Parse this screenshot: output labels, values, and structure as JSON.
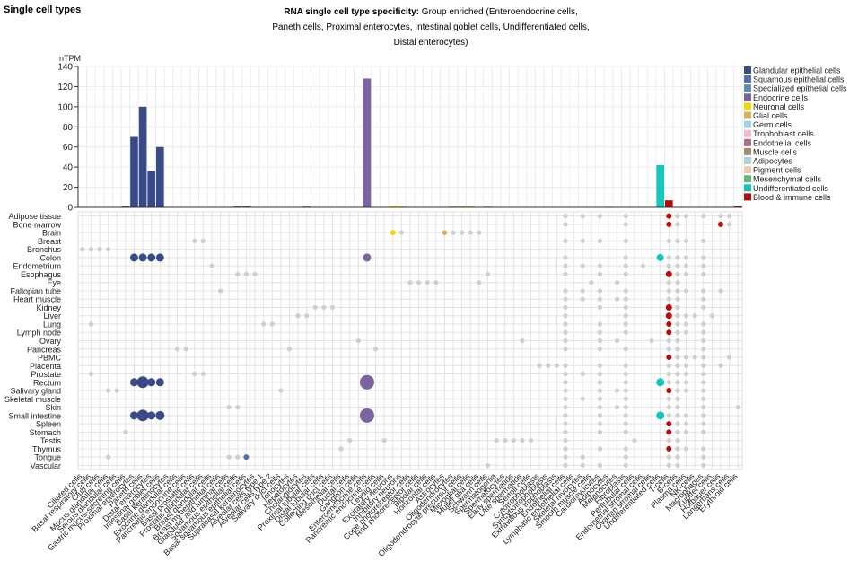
{
  "section_title": "Single cell types",
  "chart_title": {
    "bold": "RNA single cell type specificity:",
    "rest": "Group enriched (Enteroendocrine cells, Paneth cells, Proximal enterocytes, Intestinal goblet cells, Undifferentiated cells, Distal enterocytes)"
  },
  "chart_data": {
    "type": "bar",
    "ylabel": "nTPM",
    "ylim": [
      0,
      140
    ],
    "yticks": [
      0,
      20,
      40,
      60,
      80,
      100,
      120,
      140
    ],
    "grid": true,
    "legend_position": "right",
    "legend": [
      {
        "name": "Glandular epithelial cells",
        "color": "#3a4988"
      },
      {
        "name": "Squamous epithelial cells",
        "color": "#4f6fb3"
      },
      {
        "name": "Specialized epithelial cells",
        "color": "#5b8bb0"
      },
      {
        "name": "Endocrine cells",
        "color": "#7b64a0"
      },
      {
        "name": "Neuronal cells",
        "color": "#f5d800"
      },
      {
        "name": "Glial cells",
        "color": "#d9b15a"
      },
      {
        "name": "Germ cells",
        "color": "#9fd3ea"
      },
      {
        "name": "Trophoblast cells",
        "color": "#f4bcd1"
      },
      {
        "name": "Endothelial cells",
        "color": "#b3698f"
      },
      {
        "name": "Muscle cells",
        "color": "#a38a74"
      },
      {
        "name": "Adipocytes",
        "color": "#a8dad5"
      },
      {
        "name": "Pigment cells",
        "color": "#f9c8b0"
      },
      {
        "name": "Mesenchymal cells",
        "color": "#63b57b"
      },
      {
        "name": "Undifferentiated cells",
        "color": "#15c6ba"
      },
      {
        "name": "Blood & immune cells",
        "color": "#b50b0b"
      }
    ],
    "cell_types": [
      "Ciliated cells",
      "Basal respiratory cells",
      "Club cells",
      "Mucus glandular cells",
      "Serous glandular cells",
      "Gastric mucus-secreting cells",
      "Proximal enterocytes",
      "Paneth cells",
      "Distal enterocytes",
      "Intestinal goblet cells",
      "Basal keratinocytes",
      "Exocrine glandular cells",
      "Pancreatic endocrine cells",
      "Basal prostatic cells",
      "Prostatic glandular cells",
      "Breast glandular cells",
      "Breast myoepithelial cells",
      "Glandular and luminal cells",
      "Squamous epithelial cells",
      "Basal squamous epithelial cells",
      "Suprabasal keratinocytes",
      "Alveolar cells type 1",
      "Alveolar cells type 2",
      "Salivary duct cells",
      "Ionocytes",
      "Hepatocytes",
      "Cholangiocytes",
      "Proximal tubular cells",
      "Distal tubular cells",
      "Collecting duct cells",
      "Mesothelial cells",
      "Ductal cells",
      "Ganglion cells",
      "Enteroendocrine cells",
      "Pancreatic endocrine cells 2",
      "Leydig cells",
      "Excitatory neurons",
      "Inhibitory neurons",
      "Cone photoreceptor cells",
      "Rod photoreceptor cells",
      "Bipolar cells",
      "Horizontal cells",
      "Astrocytes",
      "Oligodendrocytes",
      "Oligodendrocyte precursor cells",
      "Microglial cells",
      "Muller glia cells",
      "Schwann cells",
      "Spermatogonia",
      "Spermatocytes",
      "Early spermatids",
      "Late spermatids",
      "Sertoli cells",
      "Cytotrophoblasts",
      "Syncytiotrophoblasts",
      "Extravillous trophoblasts",
      "Endothelial cells",
      "Lymphatic endothelial cells",
      "Skeletal myocytes",
      "Smooth muscle cells",
      "Cardiomyocytes",
      "Adipocytes",
      "Melanocytes",
      "Fibroblasts",
      "Peritubular cells",
      "Endometrial stromal cells",
      "Ovarian stromal cells",
      "Undifferentiated cells",
      "T-cells",
      "B-cells",
      "Plasma cells",
      "NK-cells",
      "Macrophages",
      "Kupffer cells",
      "Hofbauer cells",
      "Langerhans cells",
      "Erythroid cells"
    ],
    "tick_labels": [
      "Ciliated cells",
      "Basal respiratory cells",
      "Club cells",
      "Mucus glandular cells",
      "Serous glandular cells",
      "Gastric mucus-secreting cells",
      "Proximal enterocytes",
      "Paneth cells",
      "Distal enterocytes",
      "Intestinal goblet cells",
      "Basal keratinocytes",
      "Exocrine glandular cells",
      "Pancreatic endocrine cells",
      "Basal prostatic cells",
      "Prostatic glandular cells",
      "Breast glandular cells",
      "Breast myoepithelial cells",
      "Glandular and luminal cells",
      "Squamous epithelial cells",
      "Basal squamous epithelial cells",
      "Suprabasal keratinocytes",
      "Alveolar cells type 1",
      "Alveolar cells type 2",
      "Salivary duct cells",
      "Ionocytes",
      "Hepatocytes",
      "Cholangiocytes",
      "Proximal tubular cells",
      "Distal tubular cells",
      "Collecting duct cells",
      "Mesothelial cells",
      "Ductal cells",
      "Ganglion cells",
      "Enteroendocrine cells",
      "Pancreatic endocrine cells",
      "Leydig cells",
      "Excitatory neurons",
      "Inhibitory neurons",
      "Cone photoreceptor cells",
      "Rod photoreceptor cells",
      "Bipolar cells",
      "Horizontal cells",
      "Astrocytes",
      "Oligodendrocytes",
      "Oligodendrocyte precursor cells",
      "Microglial cells",
      "Muller glia cells",
      "Schwann cells",
      "Spermatogonia",
      "Spermatocytes",
      "Early spermatids",
      "Late spermatids",
      "Sertoli cells",
      "Cytotrophoblasts",
      "Syncytiotrophoblasts",
      "Extravillous trophoblasts",
      "Endothelial cells",
      "Lymphatic endothelial cells",
      "Skeletal myocytes",
      "Smooth muscle cells",
      "Cardiomyocytes",
      "Adipocytes",
      "Melanocytes",
      "Fibroblasts",
      "Peritubular cells",
      "Endometrial stromal cells",
      "Ovarian stromal cells",
      "Undifferentiated cells",
      "T-cells",
      "B-cells",
      "Plasma cells",
      "NK-cells",
      "Macrophages",
      "Kupffer cells",
      "Hofbauer cells",
      "Langerhans cells",
      "Erythroid cells"
    ],
    "groups": [
      "Glandular epithelial cells",
      "Glandular epithelial cells",
      "Glandular epithelial cells",
      "Glandular epithelial cells",
      "Glandular epithelial cells",
      "Glandular epithelial cells",
      "Glandular epithelial cells",
      "Glandular epithelial cells",
      "Glandular epithelial cells",
      "Glandular epithelial cells",
      "Glandular epithelial cells",
      "Glandular epithelial cells",
      "Glandular epithelial cells",
      "Glandular epithelial cells",
      "Glandular epithelial cells",
      "Glandular epithelial cells",
      "Glandular epithelial cells",
      "Glandular epithelial cells",
      "Squamous epithelial cells",
      "Squamous epithelial cells",
      "Squamous epithelial cells",
      "Specialized epithelial cells",
      "Specialized epithelial cells",
      "Specialized epithelial cells",
      "Specialized epithelial cells",
      "Specialized epithelial cells",
      "Specialized epithelial cells",
      "Specialized epithelial cells",
      "Specialized epithelial cells",
      "Specialized epithelial cells",
      "Specialized epithelial cells",
      "Specialized epithelial cells",
      "Endocrine cells",
      "Endocrine cells",
      "Endocrine cells",
      "Endocrine cells",
      "Neuronal cells",
      "Neuronal cells",
      "Neuronal cells",
      "Neuronal cells",
      "Neuronal cells",
      "Neuronal cells",
      "Glial cells",
      "Glial cells",
      "Glial cells",
      "Glial cells",
      "Glial cells",
      "Glial cells",
      "Germ cells",
      "Germ cells",
      "Germ cells",
      "Germ cells",
      "Germ cells",
      "Trophoblast cells",
      "Trophoblast cells",
      "Trophoblast cells",
      "Endothelial cells",
      "Endothelial cells",
      "Muscle cells",
      "Muscle cells",
      "Muscle cells",
      "Adipocytes",
      "Pigment cells",
      "Mesenchymal cells",
      "Mesenchymal cells",
      "Mesenchymal cells",
      "Mesenchymal cells",
      "Undifferentiated cells",
      "Blood & immune cells",
      "Blood & immune cells",
      "Blood & immune cells",
      "Blood & immune cells",
      "Blood & immune cells",
      "Blood & immune cells",
      "Blood & immune cells",
      "Blood & immune cells",
      "Blood & immune cells"
    ],
    "values": [
      0,
      0,
      0,
      0,
      0,
      0.5,
      70,
      100,
      36,
      60,
      0,
      0,
      0,
      0,
      0,
      0,
      0,
      0,
      0.6,
      0.6,
      0,
      0,
      0,
      0,
      0,
      0,
      0.3,
      0,
      0,
      0,
      0,
      0,
      0,
      128,
      0,
      0,
      1.2,
      0.8,
      0,
      0,
      0,
      0,
      0,
      0.5,
      0.6,
      0.4,
      0,
      0.4,
      0,
      0,
      0,
      0,
      0,
      0,
      0,
      0,
      0,
      0,
      0,
      0,
      0,
      0.2,
      0,
      0,
      0,
      0,
      0,
      42,
      7,
      0,
      0,
      0,
      0,
      0,
      0,
      0,
      0.3
    ],
    "tissues": [
      "Adipose tissue",
      "Bone marrow",
      "Brain",
      "Breast",
      "Bronchus",
      "Colon",
      "Endometrium",
      "Esophagus",
      "Eye",
      "Fallopian tube",
      "Heart muscle",
      "Kidney",
      "Liver",
      "Lung",
      "Lymph node",
      "Ovary",
      "Pancreas",
      "PBMC",
      "Placenta",
      "Prostate",
      "Rectum",
      "Salivary gland",
      "Skeletal muscle",
      "Skin",
      "Small intestine",
      "Spleen",
      "Stomach",
      "Testis",
      "Thymus",
      "Tongue",
      "Vascular"
    ],
    "dots": [
      {
        "tissue": "Adipose tissue",
        "cells": [
          56,
          58,
          60,
          63,
          68,
          69,
          70,
          72,
          74,
          75
        ]
      },
      {
        "tissue": "Bone marrow",
        "cells": [
          56,
          63,
          68,
          69,
          74,
          75,
          77
        ]
      },
      {
        "tissue": "Brain",
        "cells": [
          36,
          37,
          42,
          43,
          44,
          45,
          46
        ]
      },
      {
        "tissue": "Breast",
        "cells": [
          13,
          14,
          56,
          58,
          60,
          63,
          68,
          69,
          70,
          72
        ]
      },
      {
        "tissue": "Bronchus",
        "cells": [
          0,
          1,
          2,
          3
        ]
      },
      {
        "tissue": "Colon",
        "cells": [
          6,
          7,
          8,
          9,
          33,
          56,
          63,
          67,
          68,
          69,
          70,
          72
        ]
      },
      {
        "tissue": "Endometrium",
        "cells": [
          15,
          56,
          58,
          60,
          63,
          65,
          68,
          69,
          70,
          72
        ]
      },
      {
        "tissue": "Esophagus",
        "cells": [
          18,
          19,
          20,
          47,
          56,
          60,
          63,
          68,
          69,
          70,
          72
        ]
      },
      {
        "tissue": "Eye",
        "cells": [
          38,
          39,
          40,
          41,
          46,
          59,
          62,
          68,
          69
        ]
      },
      {
        "tissue": "Fallopian tube",
        "cells": [
          16,
          56,
          58,
          60,
          63,
          68,
          69,
          70,
          72,
          74
        ]
      },
      {
        "tissue": "Heart muscle",
        "cells": [
          56,
          58,
          60,
          62,
          63,
          68,
          69,
          72
        ]
      },
      {
        "tissue": "Kidney",
        "cells": [
          27,
          28,
          29,
          56,
          60,
          63,
          68,
          69,
          72
        ]
      },
      {
        "tissue": "Liver",
        "cells": [
          25,
          26,
          56,
          63,
          68,
          69,
          70,
          71,
          73
        ]
      },
      {
        "tissue": "Lung",
        "cells": [
          1,
          21,
          22,
          56,
          60,
          63,
          68,
          69,
          70,
          72
        ]
      },
      {
        "tissue": "Lymph node",
        "cells": [
          56,
          60,
          63,
          68,
          69,
          70,
          72
        ]
      },
      {
        "tissue": "Ovary",
        "cells": [
          32,
          51,
          56,
          60,
          62,
          66,
          68,
          69,
          72
        ]
      },
      {
        "tissue": "Pancreas",
        "cells": [
          11,
          12,
          24,
          34,
          56,
          60,
          63,
          68,
          69,
          72
        ]
      },
      {
        "tissue": "PBMC",
        "cells": [
          68,
          69,
          70,
          71,
          72,
          75
        ]
      },
      {
        "tissue": "Placenta",
        "cells": [
          53,
          54,
          55,
          56,
          60,
          63,
          68,
          69,
          70,
          72,
          74
        ]
      },
      {
        "tissue": "Prostate",
        "cells": [
          1,
          13,
          14,
          56,
          58,
          60,
          63,
          68,
          69,
          70,
          72
        ]
      },
      {
        "tissue": "Rectum",
        "cells": [
          6,
          7,
          8,
          9,
          33,
          56,
          60,
          63,
          67,
          68,
          69,
          70,
          72
        ]
      },
      {
        "tissue": "Salivary gland",
        "cells": [
          3,
          4,
          23,
          56,
          60,
          62,
          63,
          68,
          69,
          70,
          72
        ]
      },
      {
        "tissue": "Skeletal muscle",
        "cells": [
          56,
          58,
          60,
          63,
          68,
          69,
          72
        ]
      },
      {
        "tissue": "Skin",
        "cells": [
          17,
          18,
          56,
          60,
          62,
          63,
          68,
          69,
          72,
          76
        ]
      },
      {
        "tissue": "Small intestine",
        "cells": [
          6,
          7,
          8,
          9,
          33,
          56,
          60,
          63,
          67,
          68,
          69,
          70,
          72
        ]
      },
      {
        "tissue": "Spleen",
        "cells": [
          56,
          60,
          63,
          68,
          69,
          70,
          72
        ]
      },
      {
        "tissue": "Stomach",
        "cells": [
          5,
          56,
          60,
          63,
          68,
          69,
          70,
          72
        ]
      },
      {
        "tissue": "Testis",
        "cells": [
          31,
          35,
          48,
          49,
          50,
          51,
          52,
          56,
          64,
          68,
          69
        ]
      },
      {
        "tissue": "Thymus",
        "cells": [
          30,
          56,
          60,
          63,
          68,
          69,
          70,
          72
        ]
      },
      {
        "tissue": "Tongue",
        "cells": [
          3,
          17,
          18,
          56,
          58,
          63,
          68,
          69,
          72
        ]
      },
      {
        "tissue": "Vascular",
        "cells": [
          47,
          56,
          58,
          60,
          63,
          68,
          69,
          72
        ]
      }
    ]
  }
}
